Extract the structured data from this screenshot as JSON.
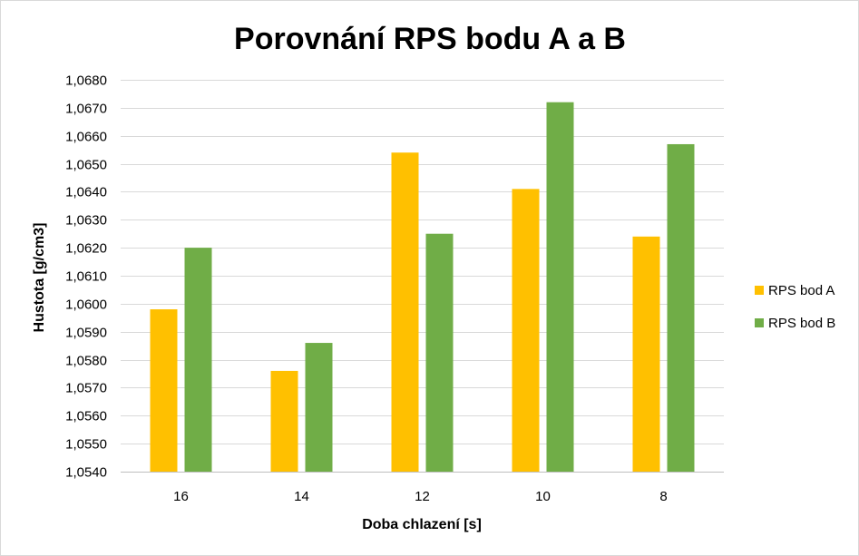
{
  "chart_data": {
    "type": "bar",
    "title": "Porovnání RPS bodu A a B",
    "xlabel": "Doba chlazení [s]",
    "ylabel": "Hustota [g/cm3]",
    "categories": [
      "16",
      "14",
      "12",
      "10",
      "8"
    ],
    "series": [
      {
        "name": "RPS bod A",
        "color": "#FFC000",
        "values": [
          1.0598,
          1.0576,
          1.0654,
          1.0641,
          1.0624
        ]
      },
      {
        "name": "RPS bod B",
        "color": "#70AD47",
        "values": [
          1.062,
          1.0586,
          1.0625,
          1.0672,
          1.0657
        ]
      }
    ],
    "ylim": [
      1.054,
      1.068
    ],
    "yticks": [
      1.054,
      1.055,
      1.056,
      1.057,
      1.058,
      1.059,
      1.06,
      1.061,
      1.062,
      1.063,
      1.064,
      1.065,
      1.066,
      1.067,
      1.068
    ],
    "ytick_labels": [
      "1,0540",
      "1,0550",
      "1,0560",
      "1,0570",
      "1,0580",
      "1,0590",
      "1,0600",
      "1,0610",
      "1,0620",
      "1,0630",
      "1,0640",
      "1,0650",
      "1,0660",
      "1,0670",
      "1,0680"
    ],
    "grid": true,
    "legend_position": "right",
    "gridline_color": "#d9d9d9"
  }
}
